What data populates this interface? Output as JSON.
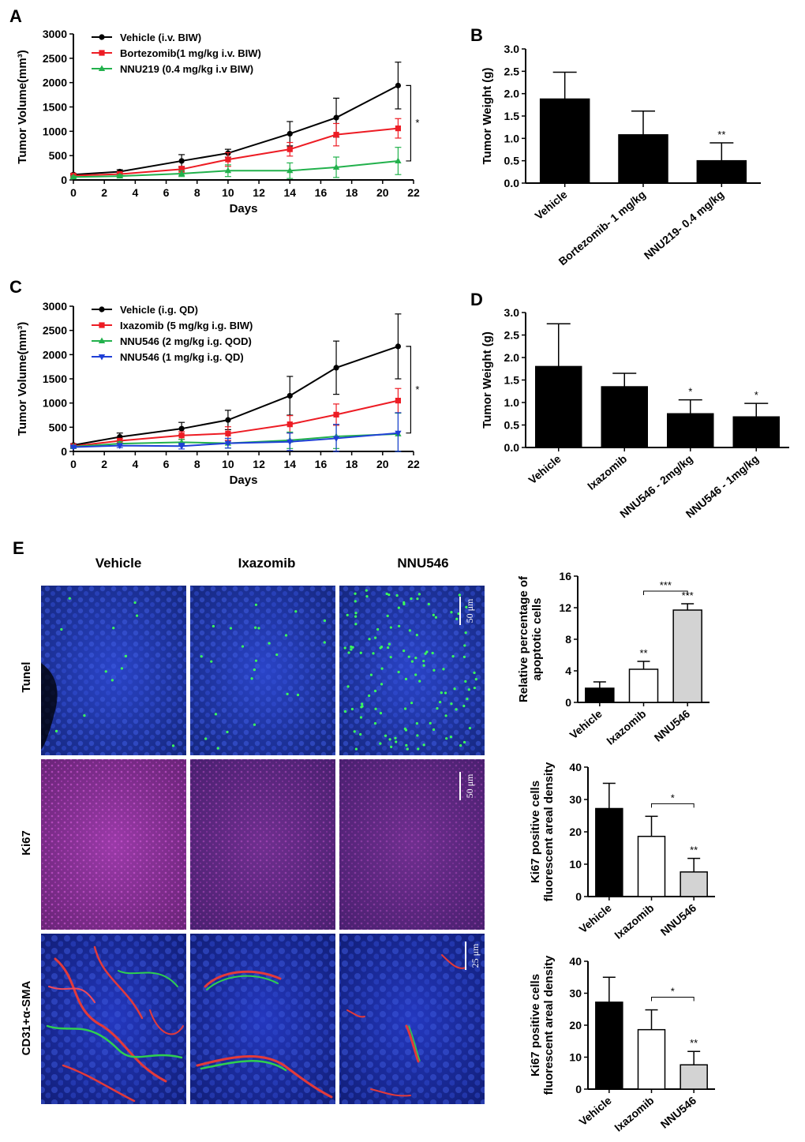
{
  "chart_data": [
    {
      "panel": "A",
      "type": "line",
      "xlabel": "Days",
      "ylabel": "Tumor Volume(mm³)",
      "xlim": [
        0,
        22
      ],
      "ylim": [
        0,
        3000
      ],
      "xticks": [
        "0",
        "2",
        "4",
        "6",
        "8",
        "10",
        "12",
        "14",
        "16",
        "18",
        "20",
        "22"
      ],
      "yticks": [
        "0",
        "500",
        "1000",
        "1500",
        "2000",
        "2500",
        "3000"
      ],
      "significance": "*",
      "series": [
        {
          "name": "Vehicle (i.v. BIW)",
          "color": "#000000",
          "marker": "circle",
          "x": [
            0,
            3,
            7,
            10,
            14,
            17,
            21
          ],
          "y": [
            110,
            170,
            390,
            550,
            950,
            1280,
            1940
          ],
          "err": [
            20,
            40,
            130,
            80,
            250,
            400,
            480
          ]
        },
        {
          "name": "Bortezomib(1 mg/kg i.v.  BIW)",
          "color": "#ed1c24",
          "marker": "square",
          "x": [
            0,
            3,
            7,
            10,
            14,
            17,
            21
          ],
          "y": [
            90,
            120,
            220,
            420,
            630,
            930,
            1060
          ],
          "err": [
            20,
            30,
            60,
            140,
            140,
            230,
            200
          ]
        },
        {
          "name": "NNU219 (0.4 mg/kg i.v BIW)",
          "color": "#22b14c",
          "marker": "triangle",
          "x": [
            0,
            3,
            7,
            10,
            14,
            17,
            21
          ],
          "y": [
            60,
            80,
            130,
            190,
            190,
            260,
            390
          ],
          "err": [
            20,
            30,
            60,
            120,
            160,
            210,
            280
          ]
        }
      ]
    },
    {
      "panel": "B",
      "type": "bar",
      "ylabel": "Tumor Weight (g)",
      "ylim": [
        0,
        3.0
      ],
      "yticks": [
        "0.0",
        "0.5",
        "1.0",
        "1.5",
        "2.0",
        "2.5",
        "3.0"
      ],
      "categories": [
        "Vehicle",
        "Bortezomib- 1 mg/kg",
        "NNU219- 0.4 mg/kg"
      ],
      "values": [
        1.88,
        1.08,
        0.5
      ],
      "errors": [
        0.6,
        0.53,
        0.4
      ],
      "annotations": [
        "",
        "",
        "**"
      ]
    },
    {
      "panel": "C",
      "type": "line",
      "xlabel": "Days",
      "ylabel": "Tumor Volume(mm³)",
      "xlim": [
        0,
        22
      ],
      "ylim": [
        0,
        3000
      ],
      "xticks": [
        "0",
        "2",
        "4",
        "6",
        "8",
        "10",
        "12",
        "14",
        "16",
        "18",
        "20",
        "22"
      ],
      "yticks": [
        "0",
        "500",
        "1000",
        "1500",
        "2000",
        "2500",
        "3000"
      ],
      "significance": "*",
      "series": [
        {
          "name": "Vehicle (i.g. QD)",
          "color": "#000000",
          "marker": "circle",
          "x": [
            0,
            3,
            7,
            10,
            14,
            17,
            21
          ],
          "y": [
            130,
            300,
            470,
            650,
            1150,
            1730,
            2170
          ],
          "err": [
            30,
            80,
            130,
            200,
            400,
            550,
            670
          ]
        },
        {
          "name": "Ixazomib (5 mg/kg i.g.  BIW)",
          "color": "#ed1c24",
          "marker": "square",
          "x": [
            0,
            3,
            7,
            10,
            14,
            17,
            21
          ],
          "y": [
            110,
            220,
            330,
            370,
            560,
            760,
            1050
          ],
          "err": [
            20,
            50,
            80,
            140,
            180,
            220,
            250
          ]
        },
        {
          "name": "NNU546 (2 mg/kg i.g. QOD)",
          "color": "#22b14c",
          "marker": "triangle",
          "x": [
            0,
            3,
            7,
            10,
            14,
            17,
            21
          ],
          "y": [
            100,
            160,
            190,
            170,
            230,
            310,
            360
          ],
          "err": [
            20,
            40,
            60,
            100,
            170,
            250,
            430
          ]
        },
        {
          "name": "NNU546 (1 mg/kg i.g. QD)",
          "color": "#1f3fd6",
          "marker": "triangle-down",
          "x": [
            0,
            3,
            7,
            10,
            14,
            17,
            21
          ],
          "y": [
            90,
            120,
            110,
            170,
            200,
            270,
            380
          ],
          "err": [
            20,
            40,
            60,
            100,
            180,
            290,
            420
          ]
        }
      ]
    },
    {
      "panel": "D",
      "type": "bar",
      "ylabel": "Tumor Weight (g)",
      "ylim": [
        0,
        3.0
      ],
      "yticks": [
        "0.0",
        "0.5",
        "1.0",
        "1.5",
        "2.0",
        "2.5",
        "3.0"
      ],
      "categories": [
        "Vehicle",
        "Ixazomib",
        "NNU546 - 2mg/kg",
        "NNU546 - 1mg/kg"
      ],
      "values": [
        1.8,
        1.35,
        0.75,
        0.68
      ],
      "errors": [
        0.95,
        0.3,
        0.31,
        0.3
      ],
      "annotations": [
        "",
        "",
        "*",
        "*"
      ]
    },
    {
      "panel": "E-Tunel",
      "type": "bar",
      "ylabel": "Relative percentage of apoptotic cells",
      "ylim": [
        0,
        16
      ],
      "yticks": [
        "0",
        "4",
        "8",
        "12",
        "16"
      ],
      "categories": [
        "Vehicle",
        "Ixazomib",
        "NNU546"
      ],
      "values": [
        1.8,
        4.2,
        11.7
      ],
      "errors": [
        0.8,
        1.0,
        0.8
      ],
      "annotations": [
        "",
        "**",
        "***"
      ],
      "comparison": {
        "from": "Ixazomib",
        "to": "NNU546",
        "label": "***"
      }
    },
    {
      "panel": "E-Ki67",
      "type": "bar",
      "ylabel": "Ki67 positive cells fluorescent areal density",
      "ylim": [
        0,
        40
      ],
      "yticks": [
        "0",
        "10",
        "20",
        "30",
        "40"
      ],
      "categories": [
        "Vehicle",
        "Ixazomib",
        "NNU546"
      ],
      "values": [
        27.2,
        18.6,
        7.6
      ],
      "errors": [
        7.8,
        6.2,
        4.2
      ],
      "annotations": [
        "",
        "",
        "**"
      ],
      "comparison": {
        "from": "Ixazomib",
        "to": "NNU546",
        "label": "*"
      }
    },
    {
      "panel": "E-CD31",
      "type": "bar",
      "ylabel": "Ki67 positive cells fluorescent areal density",
      "ylim": [
        0,
        40
      ],
      "yticks": [
        "0",
        "10",
        "20",
        "30",
        "40"
      ],
      "categories": [
        "Vehicle",
        "Ixazomib",
        "NNU546"
      ],
      "values": [
        27.2,
        18.6,
        7.6
      ],
      "errors": [
        7.8,
        6.2,
        4.2
      ],
      "annotations": [
        "",
        "",
        "**"
      ],
      "comparison": {
        "from": "Ixazomib",
        "to": "NNU546",
        "label": "*"
      }
    }
  ],
  "panel_labels": [
    "A",
    "B",
    "C",
    "D",
    "E"
  ],
  "microscopy": {
    "columns": [
      "Vehicle",
      "Ixazomib",
      "NNU546"
    ],
    "rows": [
      "Tunel",
      "Ki67",
      "CD31+α-SMA"
    ],
    "scale_bars": [
      "50 μm",
      "50 μm",
      "25 μm"
    ]
  },
  "colors": {
    "bar_fills": [
      "#000000",
      "#ffffff",
      "#d3d3d3"
    ],
    "tunel_bg": "#1b2f9c",
    "ki67_bg": "#7a2a8a",
    "cd31_bg": "#1f2fa8"
  }
}
